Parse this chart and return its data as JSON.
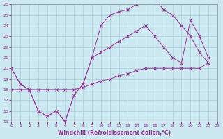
{
  "xlabel": "Windchill (Refroidissement éolien,°C)",
  "xlim": [
    0,
    23
  ],
  "ylim": [
    15,
    26
  ],
  "yticks": [
    15,
    16,
    17,
    18,
    19,
    20,
    21,
    22,
    23,
    24,
    25,
    26
  ],
  "xticks": [
    0,
    1,
    2,
    3,
    4,
    5,
    6,
    7,
    8,
    9,
    10,
    11,
    12,
    13,
    14,
    15,
    16,
    17,
    18,
    19,
    20,
    21,
    22,
    23
  ],
  "background_color": "#cce8f0",
  "grid_color": "#aaccd8",
  "line_color": "#993399",
  "line1_y": [
    20.0,
    18.5,
    18.0,
    16.0,
    15.5,
    16.0,
    15.0,
    17.5,
    18.5,
    21.0,
    24.0,
    25.0,
    25.3,
    25.5,
    26.0,
    26.5,
    26.5,
    25.5,
    25.0,
    24.0,
    23.0,
    21.5,
    20.5
  ],
  "line2_y": [
    18.0,
    18.0,
    18.0,
    18.0,
    18.0,
    18.0,
    18.0,
    18.0,
    18.2,
    18.5,
    18.8,
    19.0,
    19.3,
    19.5,
    19.8,
    20.0,
    20.0,
    20.0,
    20.0,
    20.0,
    20.0,
    20.0,
    20.5
  ],
  "line3_y": [
    20.0,
    18.5,
    18.0,
    16.0,
    15.5,
    16.0,
    15.0,
    17.5,
    18.5,
    21.0,
    21.5,
    22.0,
    22.5,
    23.0,
    23.5,
    24.0,
    23.0,
    22.0,
    21.0,
    20.5,
    24.5,
    23.0,
    21.0
  ]
}
